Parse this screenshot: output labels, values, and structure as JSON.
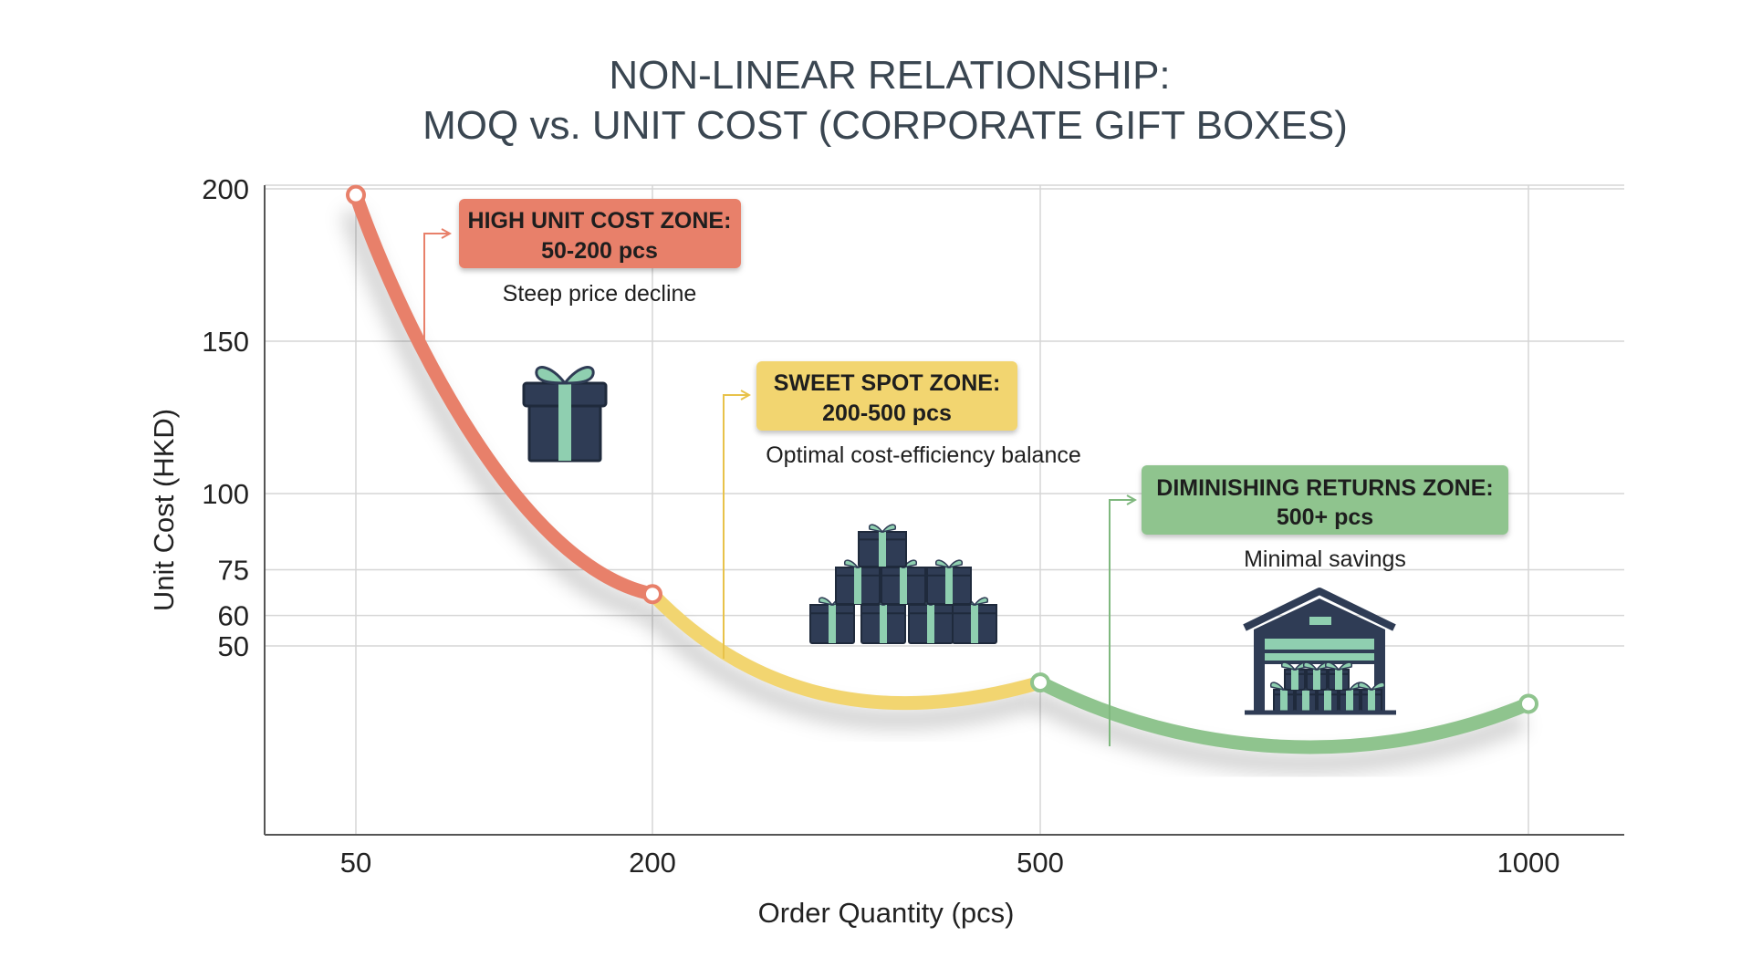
{
  "chart_data": {
    "type": "line",
    "title_lines": [
      "NON-LINEAR RELATIONSHIP:",
      "MOQ vs. UNIT COST (CORPORATE GIFT BOXES)"
    ],
    "xlabel": "Order Quantity (pcs)",
    "ylabel": "Unit Cost (HKD)",
    "x_ticks": [
      50,
      200,
      500,
      1000
    ],
    "y_ticks": [
      200,
      150,
      100,
      75,
      60,
      50
    ],
    "grid": true,
    "series": [
      {
        "x": [
          50,
          200,
          500,
          1000
        ],
        "values": [
          198,
          67,
          38,
          31
        ]
      }
    ],
    "zones": [
      {
        "label_line1": "HIGH UNIT COST ZONE:",
        "label_line2": "50-200 pcs",
        "caption": "Steep price decline",
        "color": "#e8806a",
        "x_range": [
          50,
          200
        ],
        "icon": "single-gift-box-icon"
      },
      {
        "label_line1": "SWEET SPOT ZONE:",
        "label_line2": "200-500 pcs",
        "caption": "Optimal cost-efficiency balance",
        "color": "#f2d570",
        "x_range": [
          200,
          500
        ],
        "icon": "stacked-gift-boxes-icon"
      },
      {
        "label_line1": "DIMINISHING RETURNS ZONE:",
        "label_line2": "500+ pcs",
        "caption": "Minimal savings",
        "color": "#8fc48e",
        "x_range": [
          500,
          1000
        ],
        "icon": "warehouse-icon"
      }
    ],
    "colors": {
      "curve_high": "#e8806a",
      "curve_sweet": "#f2d570",
      "curve_diminishing": "#8fc48e",
      "icon_navy": "#2f3c55",
      "icon_teal": "#8fcfb0"
    }
  }
}
